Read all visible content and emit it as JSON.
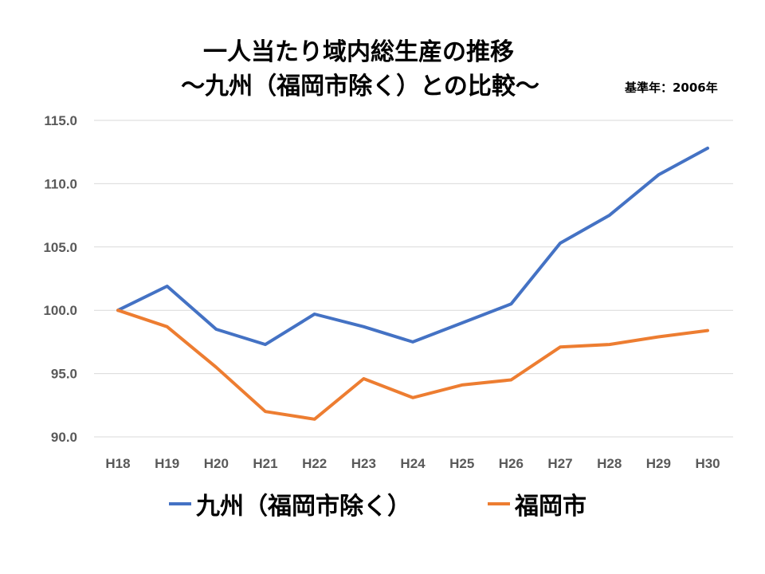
{
  "title_line1": "一人当たり域内総生産の推移",
  "title_line2": "～九州（福岡市除く）との比較～",
  "note": "基準年：2006年",
  "chart_data": {
    "type": "line",
    "categories": [
      "H18",
      "H19",
      "H20",
      "H21",
      "H22",
      "H23",
      "H24",
      "H25",
      "H26",
      "H27",
      "H28",
      "H29",
      "H30"
    ],
    "series": [
      {
        "name": "九州（福岡市除く）",
        "color": "#4472C4",
        "values": [
          100.0,
          101.9,
          98.5,
          97.3,
          99.7,
          98.7,
          97.5,
          99.0,
          100.5,
          105.3,
          107.5,
          110.7,
          112.8
        ]
      },
      {
        "name": "福岡市",
        "color": "#ED7D31",
        "values": [
          100.0,
          98.7,
          95.5,
          92.0,
          91.4,
          94.6,
          93.1,
          94.1,
          94.5,
          97.1,
          97.3,
          97.9,
          98.4
        ]
      }
    ],
    "yticks": [
      "115.0",
      "110.0",
      "105.0",
      "100.0",
      "95.0",
      "90.0"
    ],
    "ylim": [
      90,
      115
    ],
    "grid": true,
    "legend": "bottom"
  }
}
